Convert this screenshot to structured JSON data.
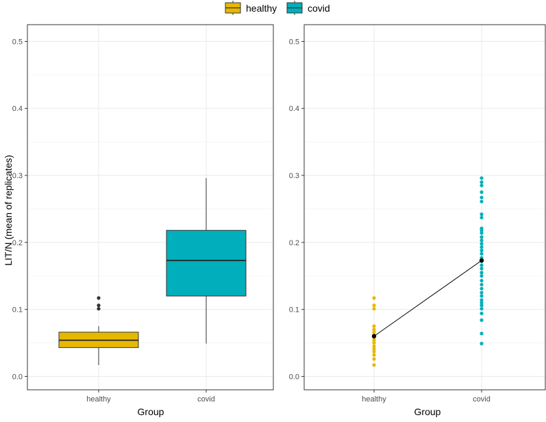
{
  "legend": {
    "entries": [
      {
        "label": "healthy",
        "color": "#E7B800"
      },
      {
        "label": "covid",
        "color": "#00AFBB"
      }
    ]
  },
  "chart_data": [
    {
      "type": "box",
      "ylabel": "LIT/N (mean of replicates)",
      "xlabel": "Group",
      "categories": [
        "healthy",
        "covid"
      ],
      "ylim": [
        -0.02,
        0.525
      ],
      "yticks": [
        0.0,
        0.1,
        0.2,
        0.3,
        0.4,
        0.5
      ],
      "ytick_labels": [
        "0.0",
        "0.1",
        "0.2",
        "0.3",
        "0.4",
        "0.5"
      ],
      "grid": true,
      "boxes": [
        {
          "category": "healthy",
          "color": "#E7B800",
          "whisker_low": 0.017,
          "q1": 0.043,
          "median": 0.054,
          "q3": 0.066,
          "whisker_high": 0.075,
          "outliers": [
            0.101,
            0.106,
            0.117
          ]
        },
        {
          "category": "covid",
          "color": "#00AFBB",
          "whisker_low": 0.049,
          "q1": 0.12,
          "median": 0.173,
          "q3": 0.218,
          "whisker_high": 0.296,
          "outliers": []
        }
      ]
    },
    {
      "type": "scatter",
      "ylabel": "",
      "xlabel": "Group",
      "categories": [
        "healthy",
        "covid"
      ],
      "ylim": [
        -0.02,
        0.525
      ],
      "yticks": [
        0.0,
        0.1,
        0.2,
        0.3,
        0.4,
        0.5
      ],
      "ytick_labels": [
        "0.0",
        "0.1",
        "0.2",
        "0.3",
        "0.4",
        "0.5"
      ],
      "grid": true,
      "series": [
        {
          "name": "healthy",
          "color": "#E7B800",
          "values": [
            0.017,
            0.026,
            0.032,
            0.037,
            0.041,
            0.045,
            0.05,
            0.054,
            0.058,
            0.062,
            0.066,
            0.07,
            0.075,
            0.101,
            0.106,
            0.117
          ]
        },
        {
          "name": "covid",
          "color": "#00AFBB",
          "values": [
            0.049,
            0.064,
            0.084,
            0.094,
            0.101,
            0.106,
            0.11,
            0.114,
            0.12,
            0.125,
            0.131,
            0.137,
            0.143,
            0.15,
            0.155,
            0.161,
            0.166,
            0.172,
            0.177,
            0.183,
            0.188,
            0.193,
            0.198,
            0.203,
            0.208,
            0.214,
            0.218,
            0.221,
            0.237,
            0.242,
            0.261,
            0.267,
            0.275,
            0.285,
            0.29,
            0.296
          ]
        }
      ],
      "means": {
        "color": "#000000",
        "values": [
          0.06,
          0.173
        ]
      }
    }
  ]
}
